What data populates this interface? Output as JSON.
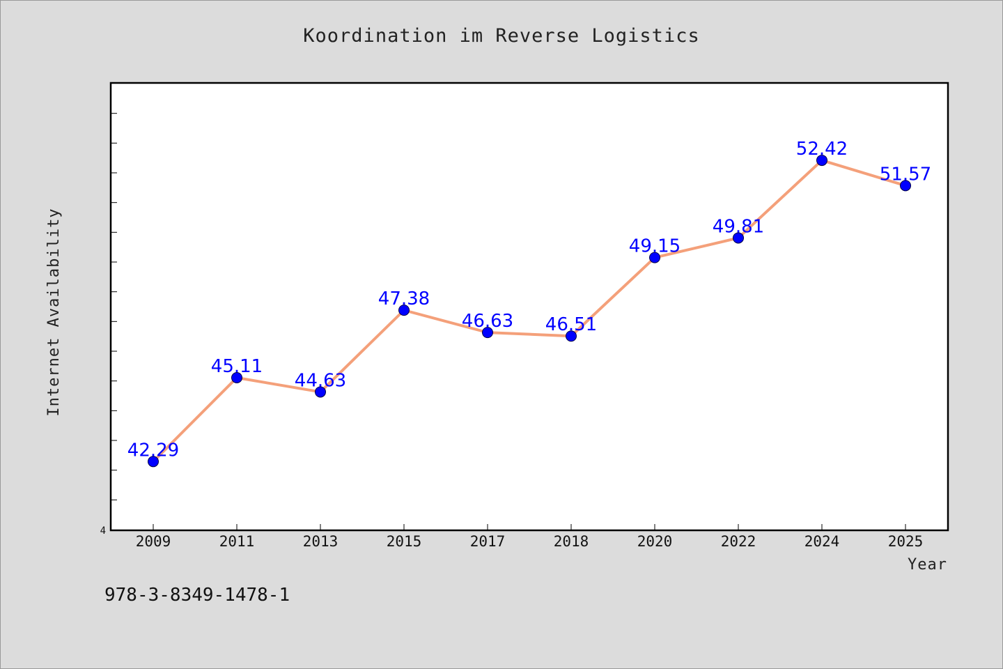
{
  "chart_data": {
    "type": "line",
    "title": "Koordination im Reverse Logistics",
    "xlabel": "Year",
    "ylabel": "Internet Availability",
    "categories": [
      "2009",
      "2011",
      "2013",
      "2015",
      "2017",
      "2018",
      "2020",
      "2022",
      "2024",
      "2025"
    ],
    "series": [
      {
        "values": [
          42.29,
          45.11,
          44.63,
          47.38,
          46.63,
          46.51,
          49.15,
          49.81,
          52.42,
          51.57
        ],
        "value_labels": [
          "42.29",
          "45.11",
          "44.63",
          "47.38",
          "46.63",
          "46.51",
          "49.15",
          "49.81",
          "52.42",
          "51.57"
        ]
      }
    ],
    "ylim": [
      40,
      55
    ],
    "y_tick_labels": [
      "4"
    ],
    "grid": false,
    "colors": {
      "line": "#f4a07a",
      "marker": "#0000ff",
      "value_label": "#0000ff"
    }
  },
  "footer": {
    "text": "978-3-8349-1478-1"
  }
}
